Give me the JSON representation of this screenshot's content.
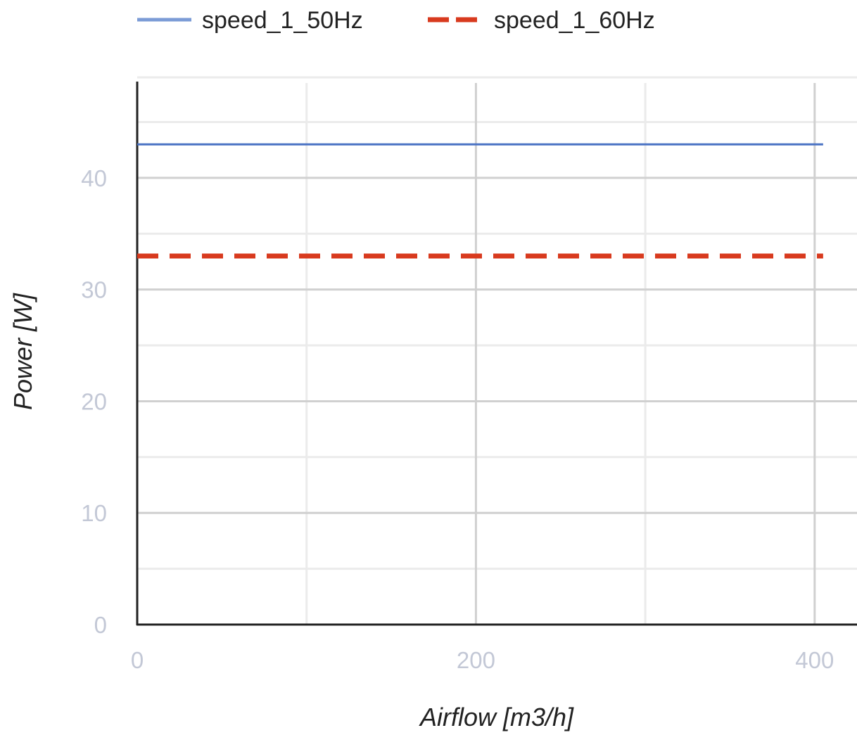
{
  "chart_data": {
    "type": "line",
    "title": "",
    "xlabel": "Airflow [m3/h]",
    "ylabel": "Power [W]",
    "xlim": [
      0,
      425
    ],
    "ylim": [
      0,
      49
    ],
    "xticks_major": [
      0,
      200,
      400
    ],
    "xticks_major_labels": [
      "0",
      "200",
      "400"
    ],
    "xticks_minor": [
      100,
      300
    ],
    "yticks_major": [
      0,
      10,
      20,
      30,
      40
    ],
    "yticks_major_labels": [
      "0",
      "10",
      "20",
      "30",
      "40"
    ],
    "yticks_minor": [
      5,
      15,
      25,
      35,
      45
    ],
    "grid": true,
    "legend_position": "top-left",
    "series": [
      {
        "name": "speed_1_50Hz",
        "color": "#4a72c4",
        "legend_color": "#7b9bd6",
        "dash": "solid",
        "x": [
          0,
          405
        ],
        "y": [
          43,
          43
        ]
      },
      {
        "name": "speed_1_60Hz",
        "color": "#d83a1e",
        "legend_color": "#d83a1e",
        "dash": "dashed",
        "x": [
          0,
          405
        ],
        "y": [
          33,
          33
        ]
      }
    ]
  }
}
